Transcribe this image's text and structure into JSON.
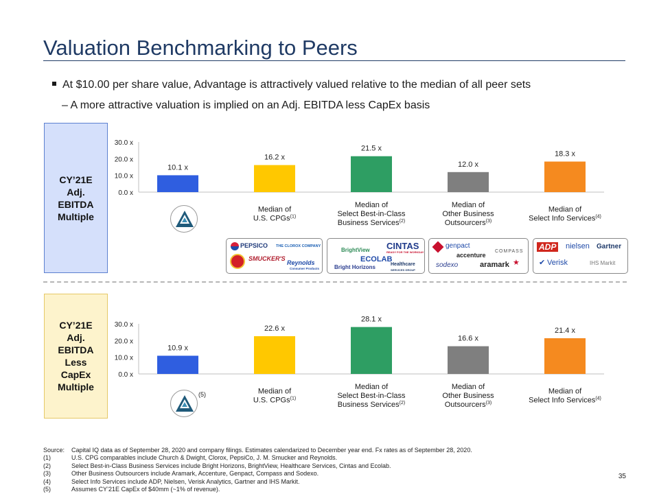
{
  "title": "Valuation Benchmarking to Peers",
  "bullets": [
    "At $10.00 per share value, Advantage is attractively valued relative to the median of all peer sets",
    "– A more attractive valuation is implied on an Adj. EBITDA less CapEx basis"
  ],
  "sections": [
    {
      "label_lines": [
        "CY’21E",
        "Adj.",
        "EBITDA",
        "Multiple"
      ]
    },
    {
      "label_lines": [
        "CY’21E",
        "Adj.",
        "EBITDA",
        "Less",
        "CapEx",
        "Multiple"
      ]
    }
  ],
  "category_labels": [
    {
      "lines": [],
      "sup": ""
    },
    {
      "lines": [
        "Median of",
        "U.S. CPGs"
      ],
      "sup": "(1)"
    },
    {
      "lines": [
        "Median of",
        "Select Best-in-Class",
        "Business Services"
      ],
      "sup": "(2)"
    },
    {
      "lines": [
        "Median of",
        "Other Business",
        "Outsourcers"
      ],
      "sup": "(3)"
    },
    {
      "lines": [
        "Median of",
        "Select Info Services"
      ],
      "sup": "(4)"
    }
  ],
  "emblem_note": "(5)",
  "chart_data": [
    {
      "type": "bar",
      "title": "CY’21E Adj. EBITDA Multiple",
      "categories": [
        "Advantage",
        "Median of U.S. CPGs",
        "Median of Select Best-in-Class Business Services",
        "Median of Other Business Outsourcers",
        "Median of Select Info Services"
      ],
      "values": [
        10.1,
        16.2,
        21.5,
        12.0,
        18.3
      ],
      "value_labels": [
        "10.1 x",
        "16.2 x",
        "21.5 x",
        "12.0 x",
        "18.3 x"
      ],
      "yticks": [
        0,
        10,
        20,
        30
      ],
      "ytick_labels": [
        "0.0 x",
        "10.0 x",
        "20.0 x",
        "30.0 x"
      ],
      "ylim": [
        0,
        30
      ],
      "colors": [
        "#2f5ee0",
        "#ffc800",
        "#2e9e63",
        "#7f7f7f",
        "#f58a1f"
      ]
    },
    {
      "type": "bar",
      "title": "CY’21E Adj. EBITDA Less CapEx Multiple",
      "categories": [
        "Advantage",
        "Median of U.S. CPGs",
        "Median of Select Best-in-Class Business Services",
        "Median of Other Business Outsourcers",
        "Median of Select Info Services"
      ],
      "values": [
        10.9,
        22.6,
        28.1,
        16.6,
        21.4
      ],
      "value_labels": [
        "10.9 x",
        "22.6 x",
        "28.1 x",
        "16.6 x",
        "21.4 x"
      ],
      "yticks": [
        0,
        10,
        20,
        30
      ],
      "ytick_labels": [
        "0.0 x",
        "10.0 x",
        "20.0 x",
        "30.0 x"
      ],
      "ylim": [
        0,
        30
      ],
      "colors": [
        "#2f5ee0",
        "#ffc800",
        "#2e9e63",
        "#7f7f7f",
        "#f58a1f"
      ]
    }
  ],
  "logos": {
    "cpg": [
      "PEPSICO",
      "THE CLOROX COMPANY",
      "SMUCKER'S",
      "Reynolds",
      "Consumer Products"
    ],
    "business": [
      "BrightView",
      "CINTAS",
      "READY FOR THE WORKDAY",
      "ECOLAB",
      "Bright Horizons",
      "Healthcare",
      "SERVICES GROUP"
    ],
    "outsourcers": [
      "genpact",
      "accenture",
      "COMPASS",
      "sodexo",
      "aramark"
    ],
    "info": [
      "ADP",
      "nielsen",
      "Gartner",
      "Verisk",
      "IHS Markit"
    ]
  },
  "footnotes": [
    {
      "key": "Source:",
      "text": "Capital IQ data as of September 28, 2020 and company filings. Estimates calendarized to December year end. Fx rates as of September 28, 2020."
    },
    {
      "key": "(1)",
      "text": "U.S. CPG comparables include Church & Dwight, Clorox, PepsiCo, J. M. Smucker and Reynolds."
    },
    {
      "key": "(2)",
      "text": "Select Best-in-Class Business Services include Bright Horizons, BrightView, Healthcare Services, Cintas and Ecolab."
    },
    {
      "key": "(3)",
      "text": "Other Business Outsourcers include Aramark, Accenture, Genpact, Compass and Sodexo."
    },
    {
      "key": "(4)",
      "text": "Select Info Services include ADP, Nielsen, Verisk Analytics, Gartner and IHS Markit."
    },
    {
      "key": "(5)",
      "text": "Assumes CY’21E CapEx of $40mm (~1% of revenue)."
    }
  ],
  "page_number": "35"
}
